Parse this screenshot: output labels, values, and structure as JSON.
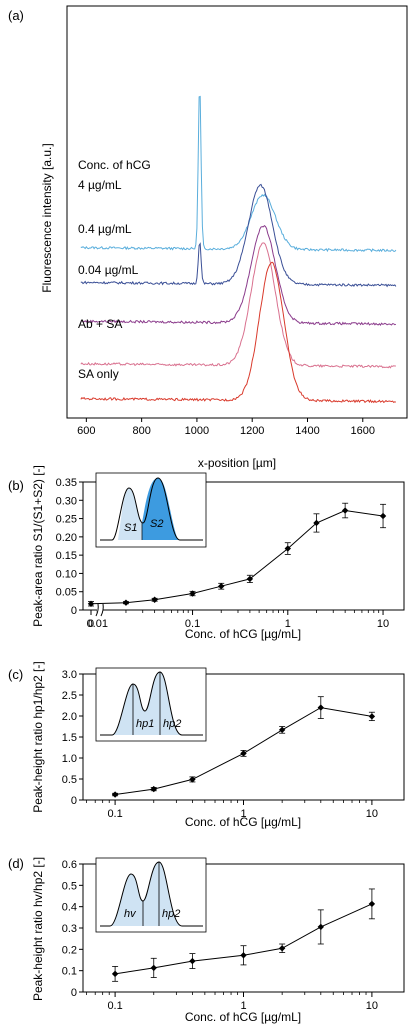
{
  "panels": {
    "a": {
      "label": "(a)"
    },
    "b": {
      "label": "(b)"
    },
    "c": {
      "label": "(c)"
    },
    "d": {
      "label": "(d)"
    }
  },
  "chart_data": [
    {
      "id": "a",
      "type": "line",
      "xlabel": "x-position [µm]",
      "ylabel": "Fluorescence intensity [a.u.]",
      "xlim": [
        530,
        1760
      ],
      "xticks": [
        600,
        800,
        1000,
        1200,
        1400,
        1600
      ],
      "legend_title": "Conc. of hCG",
      "series": [
        {
          "name": "4 µg/mL",
          "color": "#5aaedc",
          "baseline": 0.88,
          "peak1": {
            "x": 1010,
            "h": 0.85
          },
          "peak2": {
            "x": 1240,
            "h": 0.28
          }
        },
        {
          "name": "0.4 µg/mL",
          "color": "#3a4f96",
          "baseline": 0.7,
          "peak1": {
            "x": 1010,
            "h": 0.22
          },
          "peak2": {
            "x": 1230,
            "h": 0.51
          }
        },
        {
          "name": "0.04 µg/mL",
          "color": "#8b3c8c",
          "baseline": 0.5,
          "peak1": {
            "x": 1010,
            "h": 0.0
          },
          "peak2": {
            "x": 1240,
            "h": 0.5
          }
        },
        {
          "name": "Ab + SA",
          "color": "#d9718f",
          "baseline": 0.28,
          "peak1": {
            "x": 1010,
            "h": 0.0
          },
          "peak2": {
            "x": 1240,
            "h": 0.63
          }
        },
        {
          "name": "SA only",
          "color": "#d93a2c",
          "baseline": 0.1,
          "peak1": {
            "x": 1010,
            "h": 0.0
          },
          "peak2": {
            "x": 1270,
            "h": 0.71
          }
        }
      ]
    },
    {
      "id": "b",
      "type": "line",
      "x_scale": "log",
      "xlabel": "Conc. of hCG [µg/mL]",
      "ylabel": "Peak-area ratio S1/(S1+S2) [-]",
      "ylim": [
        0,
        0.35
      ],
      "yticks": [
        0,
        0.05,
        0.1,
        0.15,
        0.2,
        0.25,
        0.3,
        0.35
      ],
      "xticklabels": [
        "0",
        "0.01",
        "0.1",
        "1",
        "10"
      ],
      "points": [
        {
          "x": 0,
          "y": 0.017,
          "err": 0.006
        },
        {
          "x": 0.02,
          "y": 0.02,
          "err": 0.003
        },
        {
          "x": 0.04,
          "y": 0.028,
          "err": 0.004
        },
        {
          "x": 0.1,
          "y": 0.045,
          "err": 0.006
        },
        {
          "x": 0.2,
          "y": 0.065,
          "err": 0.008
        },
        {
          "x": 0.4,
          "y": 0.085,
          "err": 0.01
        },
        {
          "x": 1,
          "y": 0.168,
          "err": 0.016
        },
        {
          "x": 2,
          "y": 0.238,
          "err": 0.025
        },
        {
          "x": 4,
          "y": 0.272,
          "err": 0.02
        },
        {
          "x": 10,
          "y": 0.257,
          "err": 0.032
        }
      ],
      "inset": {
        "s1": "S1",
        "s2": "S2"
      }
    },
    {
      "id": "c",
      "type": "line",
      "x_scale": "log",
      "xlabel": "Conc. of hCG [µg/mL]",
      "ylabel": "Peak-height ratio hp1/hp2 [-]",
      "ylim": [
        0,
        3.0
      ],
      "yticks": [
        0,
        0.5,
        1.0,
        1.5,
        2.0,
        2.5,
        3.0
      ],
      "xticklabels": [
        "0.1",
        "1",
        "10"
      ],
      "points": [
        {
          "x": 0.1,
          "y": 0.13,
          "err": 0.03
        },
        {
          "x": 0.2,
          "y": 0.26,
          "err": 0.04
        },
        {
          "x": 0.4,
          "y": 0.49,
          "err": 0.06
        },
        {
          "x": 1,
          "y": 1.11,
          "err": 0.07
        },
        {
          "x": 2,
          "y": 1.67,
          "err": 0.08
        },
        {
          "x": 4,
          "y": 2.2,
          "err": 0.26
        },
        {
          "x": 10,
          "y": 1.99,
          "err": 0.1
        }
      ],
      "inset": {
        "h1": "hp1",
        "h2": "hp2"
      }
    },
    {
      "id": "d",
      "type": "line",
      "x_scale": "log",
      "xlabel": "Conc. of hCG [µg/mL]",
      "ylabel": "Peak-height ratio hv/hp2 [-]",
      "ylim": [
        0,
        0.6
      ],
      "yticks": [
        0,
        0.1,
        0.2,
        0.3,
        0.4,
        0.5,
        0.6
      ],
      "xticklabels": [
        "0.1",
        "1",
        "10"
      ],
      "points": [
        {
          "x": 0.1,
          "y": 0.085,
          "err": 0.035
        },
        {
          "x": 0.2,
          "y": 0.113,
          "err": 0.045
        },
        {
          "x": 0.4,
          "y": 0.145,
          "err": 0.035
        },
        {
          "x": 1,
          "y": 0.172,
          "err": 0.045
        },
        {
          "x": 2,
          "y": 0.205,
          "err": 0.02
        },
        {
          "x": 4,
          "y": 0.305,
          "err": 0.08
        },
        {
          "x": 10,
          "y": 0.413,
          "err": 0.07
        }
      ],
      "inset": {
        "h1": "hv",
        "h2": "hp2"
      }
    }
  ]
}
